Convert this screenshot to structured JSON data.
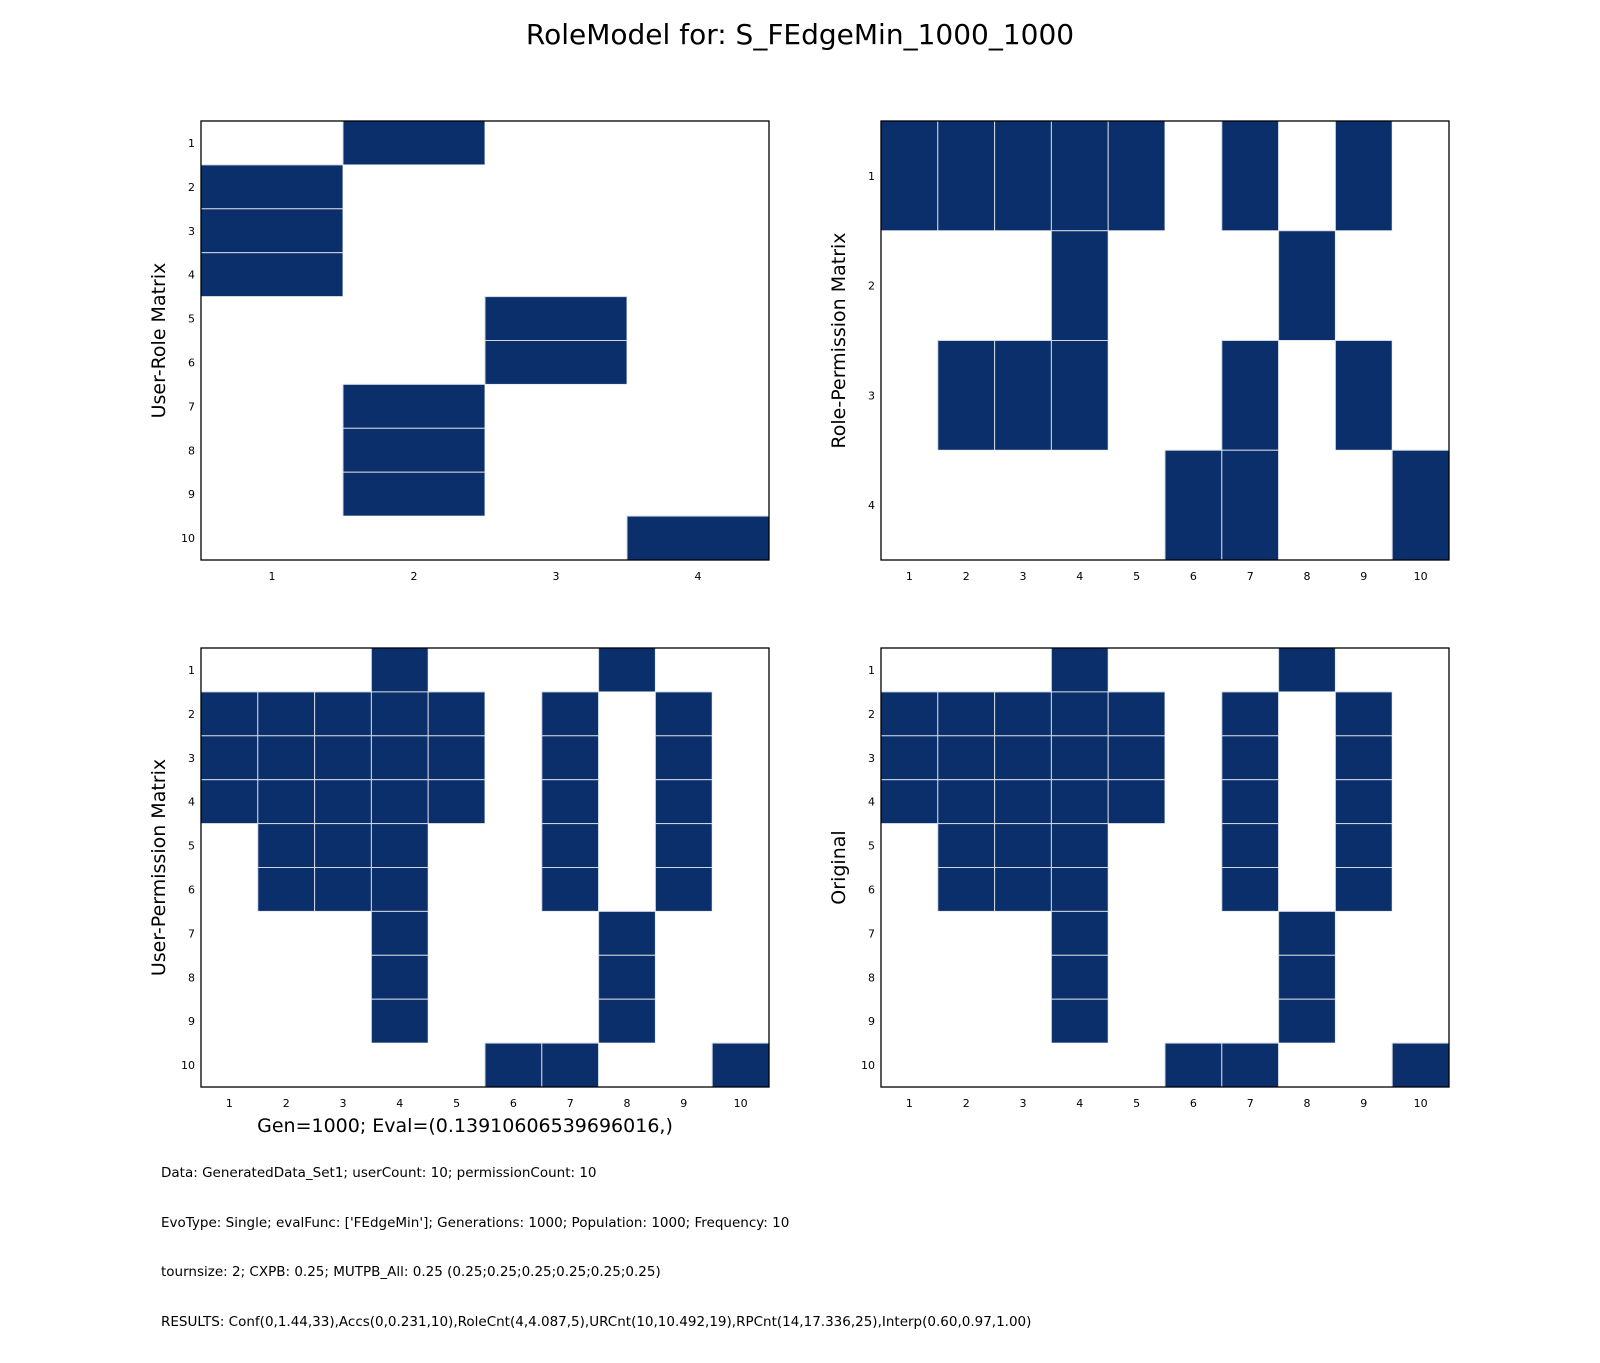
{
  "figure": {
    "title": "RoleModel for: S_FEdgeMin_1000_1000",
    "xlabel_bottom_left": "Gen=1000; Eval=(0.13910606539696016,)",
    "footer_lines": [
      "Data: GeneratedData_Set1; userCount: 10; permissionCount: 10",
      "EvoType: Single; evalFunc: ['FEdgeMin']; Generations: 1000; Population: 1000; Frequency: 10",
      "tournsize: 2; CXPB: 0.25; MUTPB_All: 0.25 (0.25;0.25;0.25;0.25;0.25;0.25)",
      "RESULTS: Conf(0,1.44,33),Accs(0,0.231,10),RoleCnt(4,4.087,5),URCnt(10,10.492,19),RPCnt(14,17.336,25),Interp(0.60,0.97,1.00)"
    ],
    "colors": {
      "filled": "#0a2f6b",
      "empty": "#ffffff",
      "cell_border": "#cfd6e3",
      "frame": "#000000"
    }
  },
  "chart_data": [
    {
      "type": "heatmap",
      "ylabel": "User-Role Matrix",
      "xlabel": "",
      "x_ticks": [
        "1",
        "2",
        "3",
        "4"
      ],
      "y_ticks": [
        "1",
        "2",
        "3",
        "4",
        "5",
        "6",
        "7",
        "8",
        "9",
        "10"
      ],
      "matrix": [
        [
          0,
          1,
          0,
          0
        ],
        [
          1,
          0,
          0,
          0
        ],
        [
          1,
          0,
          0,
          0
        ],
        [
          1,
          0,
          0,
          0
        ],
        [
          0,
          0,
          1,
          0
        ],
        [
          0,
          0,
          1,
          0
        ],
        [
          0,
          1,
          0,
          0
        ],
        [
          0,
          1,
          0,
          0
        ],
        [
          0,
          1,
          0,
          0
        ],
        [
          0,
          0,
          0,
          1
        ]
      ]
    },
    {
      "type": "heatmap",
      "ylabel": "Role-Permission Matrix",
      "xlabel": "",
      "x_ticks": [
        "1",
        "2",
        "3",
        "4",
        "5",
        "6",
        "7",
        "8",
        "9",
        "10"
      ],
      "y_ticks": [
        "1",
        "2",
        "3",
        "4"
      ],
      "matrix": [
        [
          1,
          1,
          1,
          1,
          1,
          0,
          1,
          0,
          1,
          0
        ],
        [
          0,
          0,
          0,
          1,
          0,
          0,
          0,
          1,
          0,
          0
        ],
        [
          0,
          1,
          1,
          1,
          0,
          0,
          1,
          0,
          1,
          0
        ],
        [
          0,
          0,
          0,
          0,
          0,
          1,
          1,
          0,
          0,
          1
        ]
      ]
    },
    {
      "type": "heatmap",
      "ylabel": "User-Permission Matrix",
      "xlabel": "Gen=1000; Eval=(0.13910606539696016,)",
      "x_ticks": [
        "1",
        "2",
        "3",
        "4",
        "5",
        "6",
        "7",
        "8",
        "9",
        "10"
      ],
      "y_ticks": [
        "1",
        "2",
        "3",
        "4",
        "5",
        "6",
        "7",
        "8",
        "9",
        "10"
      ],
      "matrix": [
        [
          0,
          0,
          0,
          1,
          0,
          0,
          0,
          1,
          0,
          0
        ],
        [
          1,
          1,
          1,
          1,
          1,
          0,
          1,
          0,
          1,
          0
        ],
        [
          1,
          1,
          1,
          1,
          1,
          0,
          1,
          0,
          1,
          0
        ],
        [
          1,
          1,
          1,
          1,
          1,
          0,
          1,
          0,
          1,
          0
        ],
        [
          0,
          1,
          1,
          1,
          0,
          0,
          1,
          0,
          1,
          0
        ],
        [
          0,
          1,
          1,
          1,
          0,
          0,
          1,
          0,
          1,
          0
        ],
        [
          0,
          0,
          0,
          1,
          0,
          0,
          0,
          1,
          0,
          0
        ],
        [
          0,
          0,
          0,
          1,
          0,
          0,
          0,
          1,
          0,
          0
        ],
        [
          0,
          0,
          0,
          1,
          0,
          0,
          0,
          1,
          0,
          0
        ],
        [
          0,
          0,
          0,
          0,
          0,
          1,
          1,
          0,
          0,
          1
        ]
      ]
    },
    {
      "type": "heatmap",
      "ylabel": "Original",
      "xlabel": "",
      "x_ticks": [
        "1",
        "2",
        "3",
        "4",
        "5",
        "6",
        "7",
        "8",
        "9",
        "10"
      ],
      "y_ticks": [
        "1",
        "2",
        "3",
        "4",
        "5",
        "6",
        "7",
        "8",
        "9",
        "10"
      ],
      "matrix": [
        [
          0,
          0,
          0,
          1,
          0,
          0,
          0,
          1,
          0,
          0
        ],
        [
          1,
          1,
          1,
          1,
          1,
          0,
          1,
          0,
          1,
          0
        ],
        [
          1,
          1,
          1,
          1,
          1,
          0,
          1,
          0,
          1,
          0
        ],
        [
          1,
          1,
          1,
          1,
          1,
          0,
          1,
          0,
          1,
          0
        ],
        [
          0,
          1,
          1,
          1,
          0,
          0,
          1,
          0,
          1,
          0
        ],
        [
          0,
          1,
          1,
          1,
          0,
          0,
          1,
          0,
          1,
          0
        ],
        [
          0,
          0,
          0,
          1,
          0,
          0,
          0,
          1,
          0,
          0
        ],
        [
          0,
          0,
          0,
          1,
          0,
          0,
          0,
          1,
          0,
          0
        ],
        [
          0,
          0,
          0,
          1,
          0,
          0,
          0,
          1,
          0,
          0
        ],
        [
          0,
          0,
          0,
          0,
          0,
          1,
          1,
          0,
          0,
          1
        ]
      ]
    }
  ]
}
